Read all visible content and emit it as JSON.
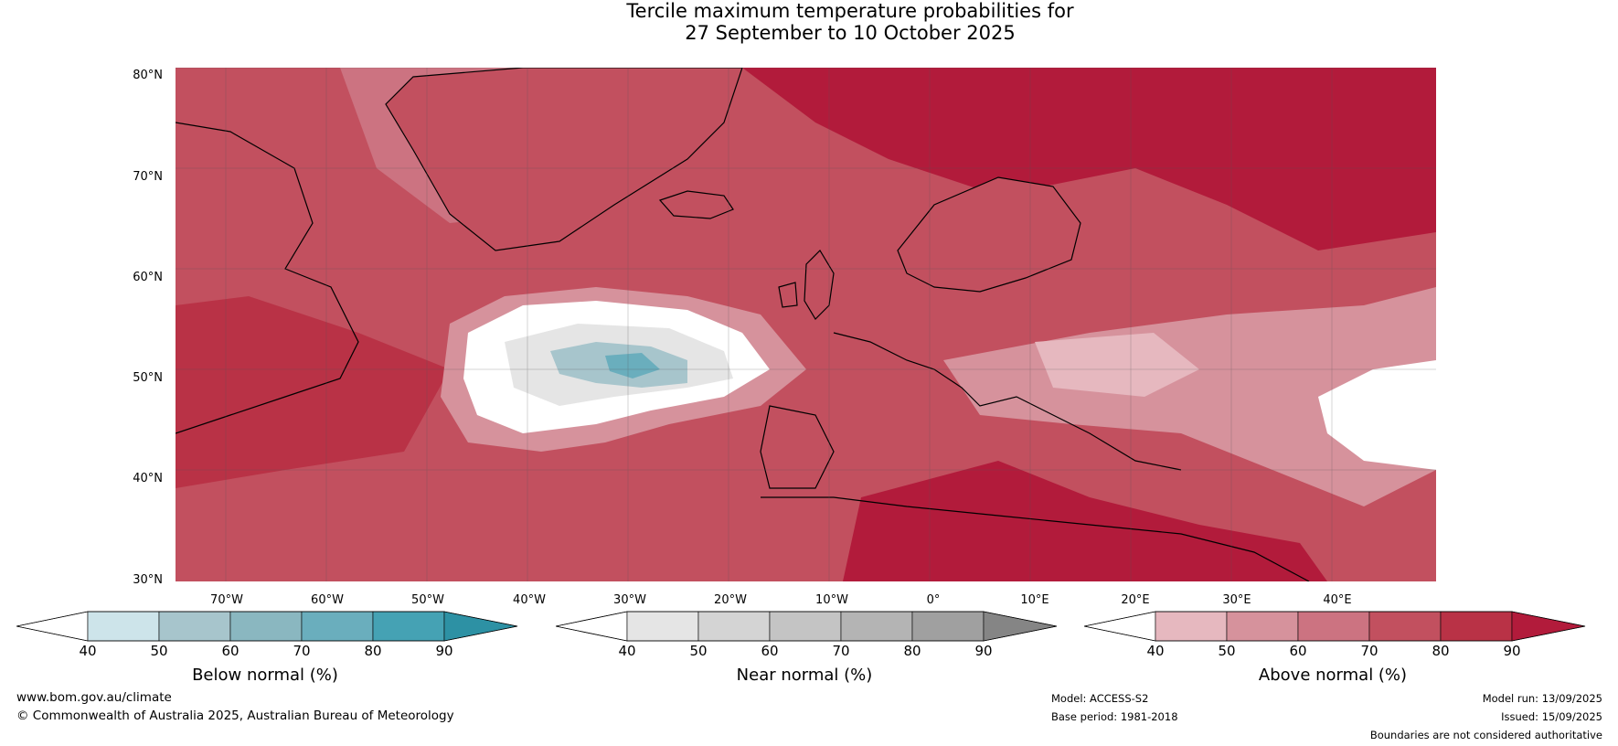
{
  "title": {
    "line1": "Tercile maximum temperature probabilities for",
    "line2": "27 September to 10 October 2025"
  },
  "map": {
    "lat_labels": [
      "80°N",
      "70°N",
      "60°N",
      "50°N",
      "40°N",
      "30°N"
    ],
    "lon_labels": [
      "70°W",
      "60°W",
      "50°W",
      "40°W",
      "30°W",
      "20°W",
      "10°W",
      "0°",
      "10°E",
      "20°E",
      "30°E",
      "40°E"
    ]
  },
  "colorbars": [
    {
      "title": "Below normal (%)",
      "ticks": [
        "40",
        "50",
        "60",
        "70",
        "80",
        "90"
      ],
      "colors": [
        "#ffffff",
        "#cde4ea",
        "#a7c5cc",
        "#8ab7c0",
        "#6aaebd",
        "#45a2b4",
        "#2d91a4"
      ]
    },
    {
      "title": "Near normal (%)",
      "ticks": [
        "40",
        "50",
        "60",
        "70",
        "80",
        "90"
      ],
      "colors": [
        "#ffffff",
        "#e5e5e5",
        "#d4d4d4",
        "#c4c4c4",
        "#b4b4b4",
        "#a0a0a0",
        "#858585"
      ]
    },
    {
      "title": "Above normal (%)",
      "ticks": [
        "40",
        "50",
        "60",
        "70",
        "80",
        "90"
      ],
      "colors": [
        "#ffffff",
        "#e6b8bf",
        "#d6929c",
        "#cc7381",
        "#c2505f",
        "#b93246",
        "#b21b3b"
      ]
    }
  ],
  "footer": {
    "website": "www.bom.gov.au/climate",
    "copyright": "© Commonwealth of Australia 2025, Australian Bureau of Meteorology",
    "model": "Model: ACCESS-S2",
    "base_period": "Base period: 1981-2018",
    "model_run": "Model run: 13/09/2025",
    "issued": "Issued: 15/09/2025",
    "disclaimer": "Boundaries are not considered authoritative"
  }
}
